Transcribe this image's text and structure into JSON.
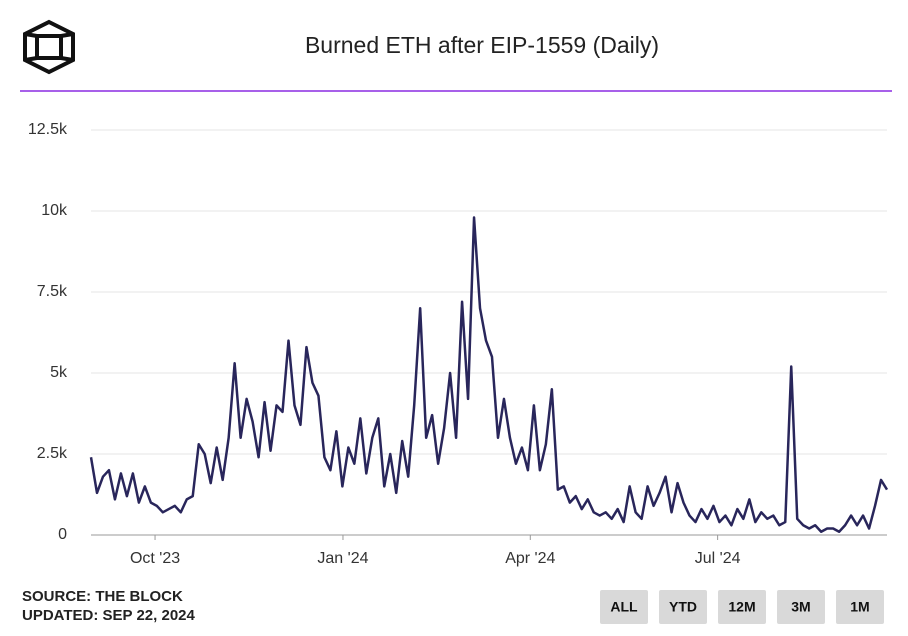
{
  "chart_data": {
    "type": "line",
    "title": "Burned ETH after EIP-1559 (Daily)",
    "source": "SOURCE: THE BLOCK",
    "updated": "UPDATED: SEP 22, 2024",
    "buttons": [
      "ALL",
      "YTD",
      "12M",
      "3M",
      "1M"
    ],
    "series": [
      {
        "color": "#29265b",
        "values": [
          2400,
          1300,
          1800,
          2000,
          1100,
          1900,
          1200,
          1900,
          1000,
          1500,
          1000,
          900,
          700,
          800,
          900,
          700,
          1100,
          1200,
          2800,
          2500,
          1600,
          2700,
          1700,
          3000,
          5300,
          3000,
          4200,
          3500,
          2400,
          4100,
          2600,
          4000,
          3800,
          6000,
          4000,
          3400,
          5800,
          4700,
          4300,
          2400,
          2000,
          3200,
          1500,
          2700,
          2200,
          3600,
          1900,
          3000,
          3600,
          1500,
          2500,
          1300,
          2900,
          1800,
          4000,
          7000,
          3000,
          3700,
          2200,
          3300,
          5000,
          3000,
          7200,
          4200,
          9800,
          7000,
          6000,
          5500,
          3000,
          4200,
          3000,
          2200,
          2700,
          2000,
          4000,
          2000,
          2800,
          4500,
          1400,
          1500,
          1000,
          1200,
          800,
          1100,
          700,
          600,
          700,
          500,
          800,
          400,
          1500,
          700,
          500,
          1500,
          900,
          1300,
          1800,
          700,
          1600,
          1000,
          600,
          400,
          800,
          500,
          900,
          400,
          600,
          300,
          800,
          500,
          1100,
          400,
          700,
          500,
          600,
          300,
          400,
          5200,
          500,
          300,
          200,
          300,
          100,
          200,
          200,
          100,
          300,
          600,
          300,
          600,
          200,
          900,
          1700,
          1400
        ]
      }
    ],
    "xlim": [
      0,
      133
    ],
    "xticks": [
      {
        "value": 10.7,
        "label": "Oct '23"
      },
      {
        "value": 42.1,
        "label": "Jan '24"
      },
      {
        "value": 73.4,
        "label": "Apr '24"
      },
      {
        "value": 104.7,
        "label": "Jul '24"
      }
    ],
    "ylim": [
      0,
      12500
    ],
    "yticks": [
      0,
      {
        "value": 2500,
        "label": "2.5k"
      },
      {
        "value": 5000,
        "label": "5k"
      },
      {
        "value": 7500,
        "label": "7.5k"
      },
      {
        "value": 10000,
        "label": "10k"
      },
      {
        "value": 12500,
        "label": "12.5k"
      }
    ],
    "grid": true
  }
}
